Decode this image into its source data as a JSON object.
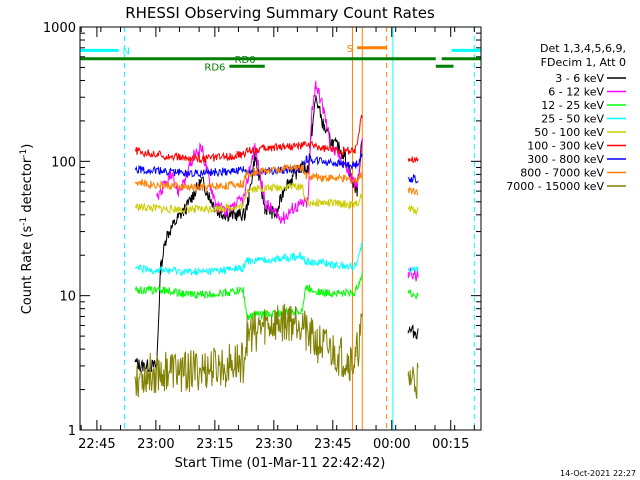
{
  "chart_data": {
    "type": "line",
    "title": "RHESSI Observing Summary Count Rates",
    "xlabel": "Start Time (01-Mar-11 22:42:42)",
    "ylabel": "Count Rate (s",
    "ylabel_sup": "-1",
    "ylabel_tail": " detector",
    "ylabel_close": ")",
    "x_unit": "minutes after 22:42:42",
    "xlim": [
      -2.0,
      100.0
    ],
    "ylim": [
      1,
      1000
    ],
    "yscale": "log",
    "x_ticks": [
      {
        "label": "22:45",
        "value": 2.3
      },
      {
        "label": "23:00",
        "value": 17.3
      },
      {
        "label": "23:15",
        "value": 32.3
      },
      {
        "label": "23:30",
        "value": 47.3
      },
      {
        "label": "23:45",
        "value": 62.3
      },
      {
        "label": "00:00",
        "value": 77.3
      },
      {
        "label": "00:15",
        "value": 92.3
      }
    ],
    "y_ticks": [
      {
        "label": "1",
        "value": 1
      },
      {
        "label": "10",
        "value": 10
      },
      {
        "label": "100",
        "value": 100
      },
      {
        "label": "1000",
        "value": 1000
      }
    ],
    "legend_header": [
      "Det 1,3,4,5,6,9,",
      "FDecim 1, Att 0"
    ],
    "legend_placement": "right",
    "series": [
      {
        "name": "3 - 6 keV",
        "color": "#000000",
        "x": [
          12,
          13.5,
          17.5,
          18.5,
          20,
          23,
          25,
          27,
          29,
          31,
          33,
          36,
          40,
          41,
          42.5,
          45,
          48,
          50,
          52,
          54,
          56,
          57,
          58,
          60,
          62,
          64,
          65.5,
          67,
          68.5,
          69.8,
          81.5,
          84
        ],
        "y": [
          3.2,
          3.0,
          3.0,
          16,
          28,
          38,
          45,
          58,
          72,
          54,
          42,
          40,
          40,
          55,
          110,
          45,
          40,
          65,
          75,
          90,
          88,
          170,
          300,
          180,
          140,
          125,
          108,
          75,
          60,
          160,
          5.5,
          5.3
        ]
      },
      {
        "name": "6 - 12 keV",
        "color": "#ff00ff",
        "x": [
          17.5,
          19,
          21,
          23,
          25,
          27,
          29,
          31,
          33,
          36,
          40,
          41,
          42.5,
          45,
          48,
          50,
          52,
          54,
          56,
          57,
          58,
          60,
          62,
          64,
          65.5,
          67,
          68.5,
          69.8,
          81.5,
          84
        ],
        "y": [
          55,
          62,
          78,
          60,
          75,
          110,
          125,
          70,
          45,
          42,
          55,
          85,
          130,
          50,
          40,
          38,
          45,
          48,
          50,
          250,
          380,
          240,
          125,
          110,
          95,
          75,
          65,
          135,
          15,
          14
        ]
      },
      {
        "name": "12 - 25 keV",
        "color": "#00ff00",
        "x": [
          12,
          15,
          20,
          25,
          30,
          35,
          39.5,
          40.5,
          45,
          50,
          54.5,
          55.5,
          60,
          65,
          68,
          69.8,
          81.5,
          84
        ],
        "y": [
          11,
          11,
          11,
          10.2,
          10.2,
          10.5,
          11,
          7,
          7.3,
          7.5,
          7.8,
          11.5,
          10.5,
          10.5,
          10.5,
          15,
          10.5,
          10
        ]
      },
      {
        "name": "25 - 50 keV",
        "color": "#00ffff",
        "x": [
          12,
          15,
          20,
          25,
          30,
          35,
          39.5,
          40.5,
          45,
          50,
          54.5,
          55.5,
          60,
          65,
          68,
          69.8,
          81.5,
          84
        ],
        "y": [
          16,
          15.5,
          15.5,
          15,
          15,
          15.5,
          16,
          18,
          18.5,
          19,
          20,
          18,
          17.5,
          16.5,
          16.5,
          25,
          16,
          15.5
        ]
      },
      {
        "name": "50 - 100 keV",
        "color": "#cccc00",
        "x": [
          12,
          15,
          20,
          25,
          30,
          35,
          39.5,
          40.5,
          45,
          50,
          54.5,
          55.5,
          60,
          65,
          68,
          69.8,
          81.5,
          84
        ],
        "y": [
          46,
          45,
          44,
          44,
          44,
          45,
          46,
          62,
          63,
          64,
          66,
          50,
          49,
          48,
          47,
          55,
          44,
          43
        ]
      },
      {
        "name": "100 - 300 keV",
        "color": "#ff0000",
        "x": [
          12,
          15,
          20,
          25,
          30,
          35,
          39.5,
          40.5,
          45,
          50,
          54.5,
          55.5,
          60,
          65,
          68,
          69.8,
          81.5,
          84
        ],
        "y": [
          120,
          115,
          110,
          105,
          105,
          108,
          112,
          120,
          125,
          130,
          130,
          135,
          125,
          120,
          120,
          220,
          105,
          102
        ]
      },
      {
        "name": "300 - 800 keV",
        "color": "#0000ff",
        "x": [
          12,
          15,
          20,
          25,
          30,
          35,
          39.5,
          40.5,
          45,
          50,
          54.5,
          55.5,
          60,
          65,
          68,
          69.8,
          81.5,
          84
        ],
        "y": [
          88,
          86,
          84,
          82,
          82,
          84,
          86,
          82,
          84,
          86,
          88,
          105,
          100,
          95,
          93,
          110,
          75,
          73
        ]
      },
      {
        "name": "800 - 7000 keV",
        "color": "#ff8000",
        "x": [
          12,
          15,
          20,
          25,
          30,
          35,
          39.5,
          40.5,
          45,
          50,
          54.5,
          55.5,
          60,
          65,
          68,
          69.8,
          81.5,
          84
        ],
        "y": [
          70,
          68,
          66,
          64,
          64,
          66,
          68,
          82,
          85,
          88,
          90,
          78,
          76,
          74,
          72,
          80,
          62,
          60
        ]
      },
      {
        "name": "7000 - 15000 keV",
        "color": "#808000",
        "x": [
          12,
          15,
          20,
          25,
          30,
          35,
          39.5,
          40.5,
          45,
          50,
          54.5,
          55.5,
          60,
          65,
          68,
          69.8,
          81.5,
          84
        ],
        "y": [
          2.5,
          2.6,
          2.8,
          2.7,
          2.8,
          3.0,
          3.2,
          5,
          6,
          6.5,
          6.8,
          5,
          4.2,
          3.5,
          3.2,
          6,
          2.5,
          2.4
        ]
      }
    ],
    "flags": [
      {
        "label": "N",
        "color": "#00ffff",
        "y": 670,
        "segments": [
          [
            -2,
            7.8
          ],
          [
            92.5,
            100
          ]
        ]
      },
      {
        "label": "S",
        "color": "#ff8000",
        "y": 700,
        "segments": [
          [
            68.5,
            76
          ]
        ]
      },
      {
        "label": "RD0",
        "color": "#008000",
        "y": 580,
        "segments": [
          [
            -2,
            88.5
          ],
          [
            90,
            100
          ]
        ]
      },
      {
        "label": "RD6",
        "color": "#008000",
        "y": 510,
        "segments": [
          [
            36,
            45
          ],
          [
            88.5,
            93
          ]
        ]
      }
    ],
    "vertical_lines": [
      {
        "x": -2,
        "color": "#00ffff",
        "style": "solid"
      },
      {
        "x": 9.3,
        "color": "#00ffff",
        "style": "dashed"
      },
      {
        "x": 67.3,
        "color": "#ff8000",
        "style": "solid"
      },
      {
        "x": 69.8,
        "color": "#ff8000",
        "style": "solid"
      },
      {
        "x": 76.0,
        "color": "#ff8000",
        "style": "dashed"
      },
      {
        "x": 77.6,
        "color": "#00ffff",
        "style": "solid"
      },
      {
        "x": 98.3,
        "color": "#00ffff",
        "style": "dashed"
      }
    ],
    "grid": false
  },
  "footer_date": "14-Oct-2021 22:27"
}
